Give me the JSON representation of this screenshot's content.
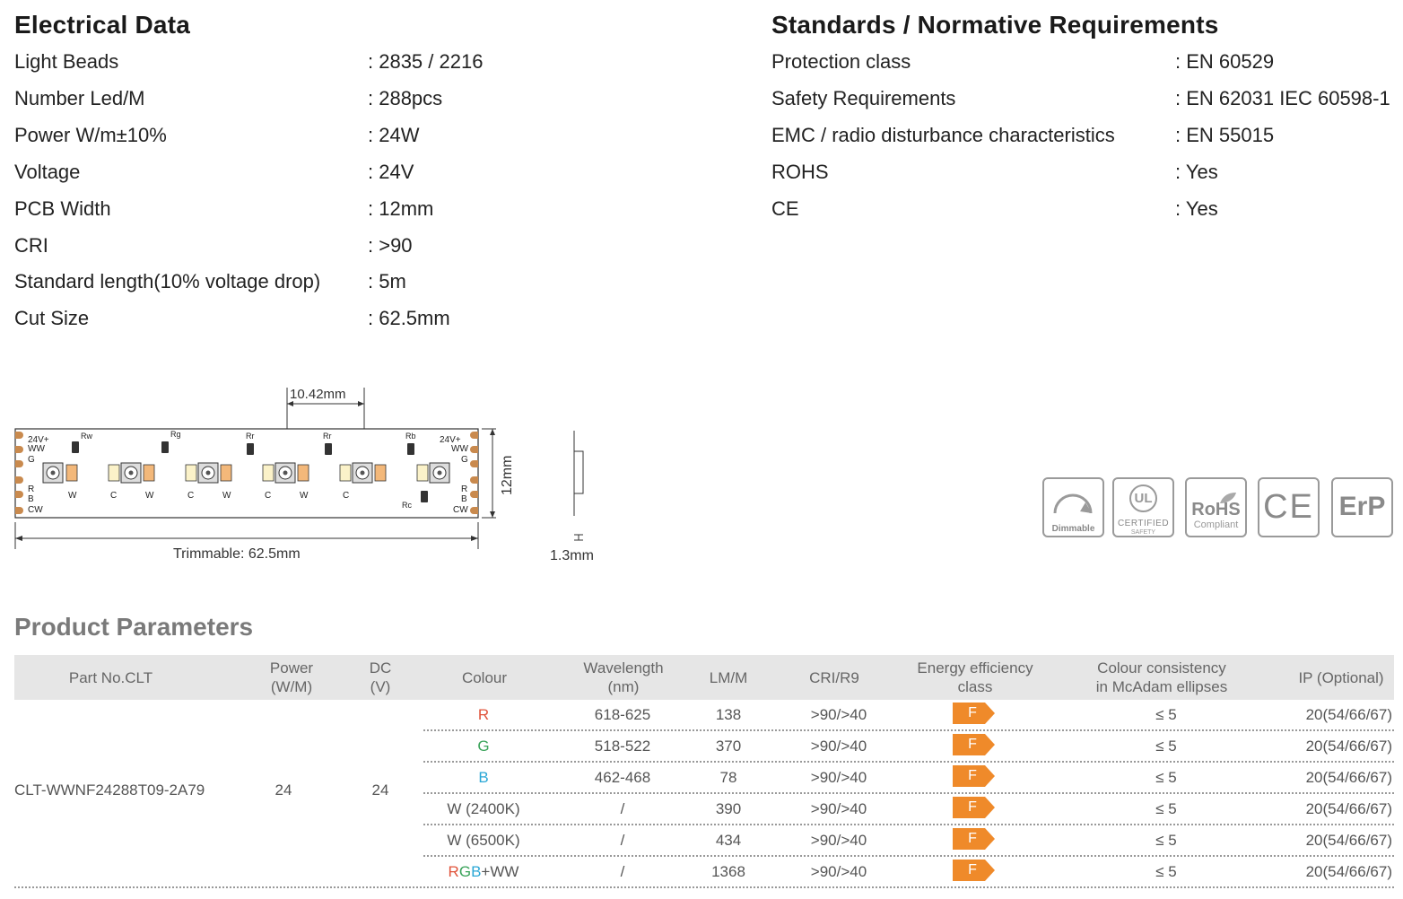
{
  "electrical": {
    "title": "Electrical Data",
    "rows": [
      {
        "label": "Light Beads",
        "value": ": 2835 / 2216"
      },
      {
        "label": "Number Led/M",
        "value": ": 288pcs"
      },
      {
        "label": "Power W/m±10%",
        "value": ": 24W"
      },
      {
        "label": "Voltage",
        "value": ": 24V"
      },
      {
        "label": "PCB Width",
        "value": ": 12mm"
      },
      {
        "label": "CRI",
        "value": ": >90"
      },
      {
        "label": "Standard length(10% voltage drop)",
        "value": ": 5m"
      },
      {
        "label": "Cut Size",
        "value": ": 62.5mm"
      }
    ]
  },
  "standards": {
    "title": "Standards / Normative Requirements",
    "rows": [
      {
        "label": "Protection class",
        "value": ": EN 60529"
      },
      {
        "label": "Safety Requirements",
        "value": ": EN 62031 IEC 60598-1"
      },
      {
        "label": "EMC / radio disturbance characteristics",
        "value": ": EN 55015"
      },
      {
        "label": "ROHS",
        "value": ": Yes"
      },
      {
        "label": "CE",
        "value": ": Yes"
      }
    ]
  },
  "diagram": {
    "pitch_label": "10.42mm",
    "width_label": "12mm",
    "trim_label": "Trimmable: 62.5mm",
    "thickness_label": "1.3mm",
    "left_pads": [
      "24V+",
      "WW",
      "G",
      "R",
      "B",
      "CW"
    ],
    "right_pads": [
      "24V+",
      "WW",
      "G",
      "R",
      "B",
      "CW"
    ],
    "resistors": [
      "Rw",
      "Rg",
      "Rr",
      "Rr",
      "Rb",
      "Rc"
    ],
    "led_letters": [
      "W",
      "C",
      "W",
      "C",
      "W",
      "C",
      "W",
      "C"
    ]
  },
  "certs": {
    "dimmable": "Dimmable",
    "ul_mark": "UL",
    "ul_certified": "CERTIFIED",
    "ul_safety": "SAFETY",
    "rohs": "RoHS",
    "rohs_compliant": "Compliant",
    "ce": "CE",
    "erp": "ErP"
  },
  "products": {
    "title": "Product Parameters",
    "headers": {
      "part": "Part No.CLT",
      "power_1": "Power",
      "power_2": "(W/M)",
      "dc_1": "DC",
      "dc_2": "(V)",
      "colour": "Colour",
      "wave_1": "Wavelength",
      "wave_2": "(nm)",
      "lm": "LM/M",
      "cri": "CRI/R9",
      "eec_1": "Energy efficiency",
      "eec_2": "class",
      "mcadam_1": "Colour consistency",
      "mcadam_2": "in McAdam ellipses",
      "ip": "IP (Optional)"
    },
    "part_no": "CLT-WWNF24288T09-2A79",
    "power": "24",
    "dc": "24",
    "rows": [
      {
        "colour": "R",
        "wavelength": "618-625",
        "lm": "138",
        "cri": ">90/>40",
        "eec": "F",
        "mcadam": "≤ 5",
        "ip": "20(54/66/67)"
      },
      {
        "colour": "G",
        "wavelength": "518-522",
        "lm": "370",
        "cri": ">90/>40",
        "eec": "F",
        "mcadam": "≤ 5",
        "ip": "20(54/66/67)"
      },
      {
        "colour": "B",
        "wavelength": "462-468",
        "lm": "78",
        "cri": ">90/>40",
        "eec": "F",
        "mcadam": "≤ 5",
        "ip": "20(54/66/67)"
      },
      {
        "colour": "W (2400K)",
        "wavelength": "/",
        "lm": "390",
        "cri": ">90/>40",
        "eec": "F",
        "mcadam": "≤ 5",
        "ip": "20(54/66/67)"
      },
      {
        "colour": "W (6500K)",
        "wavelength": "/",
        "lm": "434",
        "cri": ">90/>40",
        "eec": "F",
        "mcadam": "≤ 5",
        "ip": "20(54/66/67)"
      },
      {
        "colour": "RGB+WW",
        "wavelength": "/",
        "lm": "1368",
        "cri": ">90/>40",
        "eec": "F",
        "mcadam": "≤ 5",
        "ip": "20(54/66/67)"
      }
    ],
    "rgbww_parts": {
      "r": "R",
      "g": "G",
      "b": "B",
      "rest": "+WW"
    },
    "colors": {
      "red": "#e0533a",
      "green": "#3aa35a",
      "blue": "#2aa7d6",
      "badge": "#ef8a2a"
    }
  }
}
